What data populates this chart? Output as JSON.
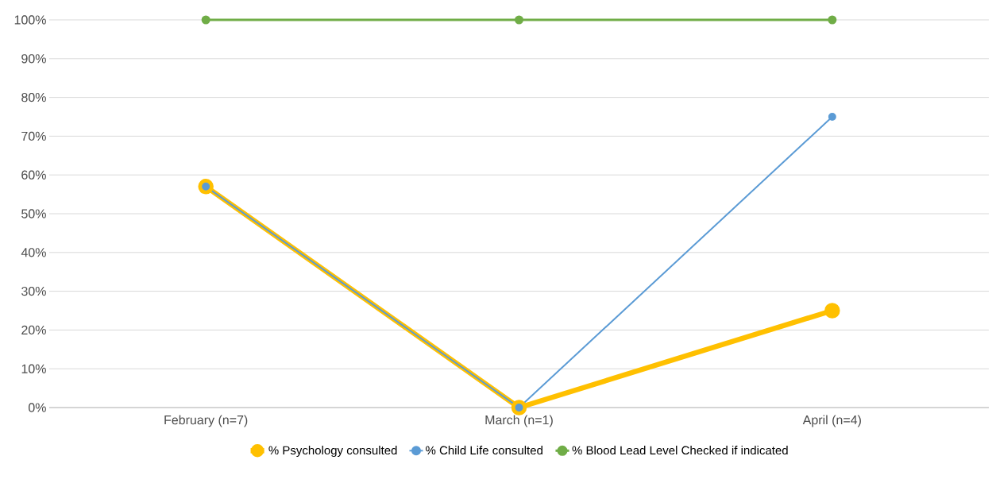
{
  "chart_data": {
    "type": "line",
    "categories": [
      "February (n=7)",
      "March (n=1)",
      "April (n=4)"
    ],
    "series": [
      {
        "name": "% Psychology consulted",
        "color": "#ffc000",
        "values": [
          57,
          0,
          25
        ]
      },
      {
        "name": "% Child Life consulted",
        "color": "#5b9bd5",
        "values": [
          57,
          0,
          75
        ]
      },
      {
        "name": "% Blood Lead Level Checked if indicated",
        "color": "#70ad47",
        "values": [
          100,
          100,
          100
        ]
      }
    ],
    "ylim": [
      0,
      100
    ],
    "yticks": [
      {
        "value": 0,
        "label": "0%"
      },
      {
        "value": 10,
        "label": "10%"
      },
      {
        "value": 20,
        "label": "20%"
      },
      {
        "value": 30,
        "label": "30%"
      },
      {
        "value": 40,
        "label": "40%"
      },
      {
        "value": 50,
        "label": "50%"
      },
      {
        "value": 60,
        "label": "60%"
      },
      {
        "value": 70,
        "label": "70%"
      },
      {
        "value": 80,
        "label": "80%"
      },
      {
        "value": 90,
        "label": "90%"
      },
      {
        "value": 100,
        "label": "100%"
      }
    ],
    "grid": "y",
    "legend": "bottom",
    "marker": "circle",
    "line_style": "solid"
  }
}
